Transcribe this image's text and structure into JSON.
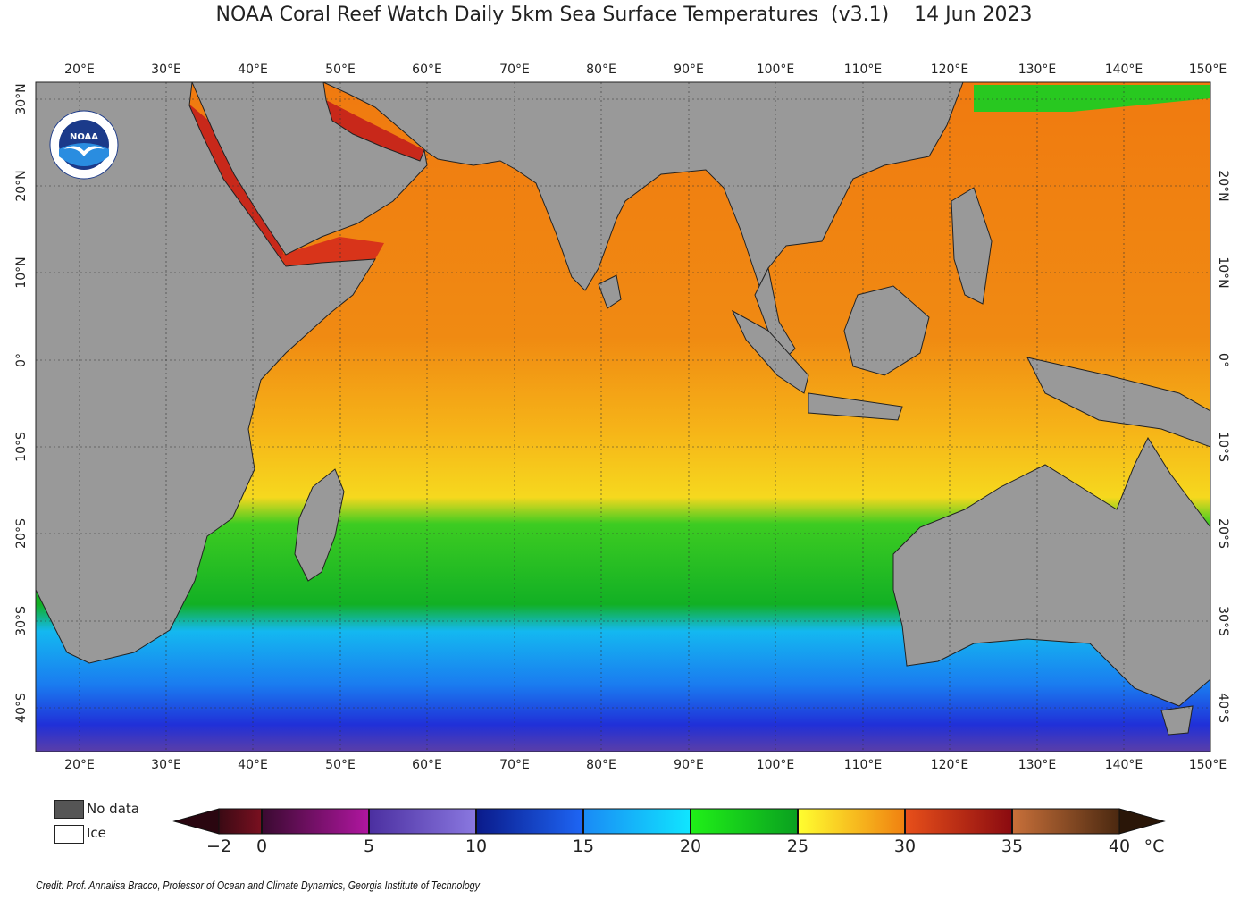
{
  "title": "NOAA Coral Reef Watch Daily 5km Sea Surface Temperatures  (v3.1)    14 Jun 2023",
  "map": {
    "lon_range": [
      15,
      150
    ],
    "lat_range": [
      -45,
      32
    ],
    "lon_ticks": [
      "20°E",
      "30°E",
      "40°E",
      "50°E",
      "60°E",
      "70°E",
      "80°E",
      "90°E",
      "100°E",
      "110°E",
      "120°E",
      "130°E",
      "140°E",
      "150°E"
    ],
    "lat_ticks": [
      "30°N",
      "20°N",
      "10°N",
      "0°",
      "10°S",
      "20°S",
      "30°S",
      "40°S"
    ],
    "land_color": "#999999",
    "logo": "noaa-logo-icon"
  },
  "legend": {
    "no_data_label": "No data",
    "ice_label": "Ice",
    "no_data_color": "#555555",
    "ice_color": "#ffffff"
  },
  "colorbar": {
    "unit": "°C",
    "ticks": [
      "−2",
      "0",
      "5",
      "10",
      "15",
      "20",
      "25",
      "30",
      "35",
      "40"
    ],
    "tick_values": [
      -2,
      0,
      5,
      10,
      15,
      20,
      25,
      30,
      35,
      40
    ]
  },
  "credit": "Credit: Prof. Annalisa Bracco, Professor of Ocean and Climate Dynamics, Georgia Institute of Technology"
}
